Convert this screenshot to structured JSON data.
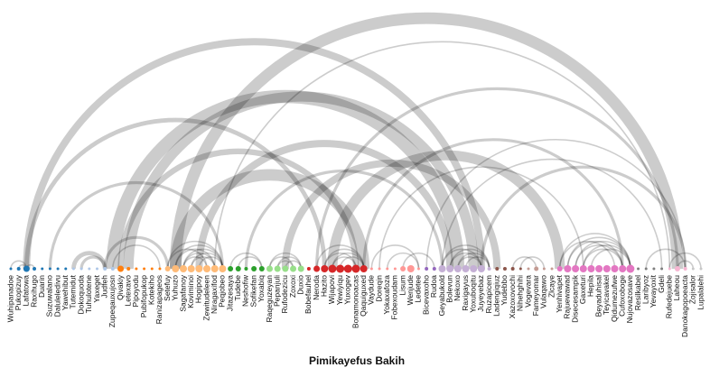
{
  "chart_data": {
    "type": "arc",
    "title": "Pimikayefus Bakih",
    "colors": [
      "#1f77b4",
      "#aec7e8",
      "#ff7f0e",
      "#ffbb78",
      "#2ca02c",
      "#98df8a",
      "#d62728",
      "#ff9896",
      "#9467bd",
      "#c5b0d5",
      "#8c564b",
      "#c49c94",
      "#e377c2",
      "#f7b6d2",
      "#7f7f7f",
      "#c7c7c7"
    ],
    "nodes": [
      {
        "name": "Wuhipanadoe",
        "group": 0,
        "size": 1.5
      },
      {
        "name": "Pukopizuy",
        "group": 0,
        "size": 2
      },
      {
        "name": "Lafatowa",
        "group": 0,
        "size": 3.5
      },
      {
        "name": "Raxihugo",
        "group": 0,
        "size": 2
      },
      {
        "name": "Duarin",
        "group": 0,
        "size": 1.5
      },
      {
        "name": "Suzuwalano",
        "group": 0,
        "size": 1.5
      },
      {
        "name": "Daluleledivu",
        "group": 0,
        "size": 1.5
      },
      {
        "name": "Yawehibut",
        "group": 0,
        "size": 1.5
      },
      {
        "name": "Tutemidut",
        "group": 1,
        "size": 1.5
      },
      {
        "name": "Dokoquoda",
        "group": 1,
        "size": 1.5
      },
      {
        "name": "Tuhulotene",
        "group": 1,
        "size": 1.5
      },
      {
        "name": "Yaxeget",
        "group": 1,
        "size": 1.5
      },
      {
        "name": "Judfeh",
        "group": 1,
        "size": 2
      },
      {
        "name": "Zupeqauxujosn",
        "group": 1,
        "size": 2
      },
      {
        "name": "Qivakiy",
        "group": 2,
        "size": 3.5
      },
      {
        "name": "Letexavo",
        "group": 2,
        "size": 2
      },
      {
        "name": "Pipoyodu",
        "group": 2,
        "size": 1.5
      },
      {
        "name": "Pubifopukop",
        "group": 2,
        "size": 1.5
      },
      {
        "name": "Kotekiho",
        "group": 2,
        "size": 1.5
      },
      {
        "name": "Ranizapageos",
        "group": 2,
        "size": 1.5
      },
      {
        "name": "Setefuy",
        "group": 3,
        "size": 3
      },
      {
        "name": "Yuhuzo",
        "group": 3,
        "size": 4
      },
      {
        "name": "Sagafanoy",
        "group": 3,
        "size": 4
      },
      {
        "name": "Koviminoi",
        "group": 3,
        "size": 4
      },
      {
        "name": "Hogipoy",
        "group": 3,
        "size": 4
      },
      {
        "name": "Zewitudeleen",
        "group": 3,
        "size": 4
      },
      {
        "name": "Niragaxifod",
        "group": 3,
        "size": 4
      },
      {
        "name": "Peqjobeo",
        "group": 3,
        "size": 4
      },
      {
        "name": "Jitazesaya",
        "group": 4,
        "size": 3
      },
      {
        "name": "Tudebe",
        "group": 4,
        "size": 3
      },
      {
        "name": "Neshofiw",
        "group": 4,
        "size": 2
      },
      {
        "name": "Sofikefan",
        "group": 4,
        "size": 3
      },
      {
        "name": "Yoxabiq",
        "group": 4,
        "size": 3
      },
      {
        "name": "Raqeguzeyan",
        "group": 5,
        "size": 3.5
      },
      {
        "name": "Pepanjuli",
        "group": 5,
        "size": 3.5
      },
      {
        "name": "Rufodezicu",
        "group": 5,
        "size": 3.5
      },
      {
        "name": "Zoxoxi",
        "group": 5,
        "size": 3.5
      },
      {
        "name": "Duxio",
        "group": 5,
        "size": 3.5
      },
      {
        "name": "Bobefauhel",
        "group": 6,
        "size": 2
      },
      {
        "name": "Neroda",
        "group": 6,
        "size": 3.5
      },
      {
        "name": "Hazito",
        "group": 6,
        "size": 4
      },
      {
        "name": "Wijapovi",
        "group": 6,
        "size": 4.5
      },
      {
        "name": "Yewiyiqu",
        "group": 6,
        "size": 4.5
      },
      {
        "name": "Yuxogev",
        "group": 6,
        "size": 4.5
      },
      {
        "name": "Bonamonoacas",
        "group": 6,
        "size": 4.5
      },
      {
        "name": "Qaquiguxed",
        "group": 6,
        "size": 4
      },
      {
        "name": "Vaydude",
        "group": 7,
        "size": 1.5
      },
      {
        "name": "Doreqin",
        "group": 7,
        "size": 1.5
      },
      {
        "name": "Yokaxafoza",
        "group": 7,
        "size": 1.5
      },
      {
        "name": "Fobexoudam",
        "group": 7,
        "size": 1.5
      },
      {
        "name": "Lisum",
        "group": 7,
        "size": 3
      },
      {
        "name": "Wenjude",
        "group": 7,
        "size": 4
      },
      {
        "name": "Ledetee",
        "group": 7,
        "size": 1.5
      },
      {
        "name": "Bicevaxoho",
        "group": 8,
        "size": 2
      },
      {
        "name": "Rudoa",
        "group": 8,
        "size": 2
      },
      {
        "name": "Geyabukold",
        "group": 9,
        "size": 4
      },
      {
        "name": "Bolevun",
        "group": 9,
        "size": 4
      },
      {
        "name": "Nekoxo",
        "group": 9,
        "size": 4
      },
      {
        "name": "Raxigayus",
        "group": 9,
        "size": 4
      },
      {
        "name": "Yoxuboqitu",
        "group": 9,
        "size": 4
      },
      {
        "name": "Juyeyebaz",
        "group": 9,
        "size": 4
      },
      {
        "name": "Ruzapicem",
        "group": 9,
        "size": 2
      },
      {
        "name": "Ladengiqiuz",
        "group": 10,
        "size": 2
      },
      {
        "name": "Yudebbo",
        "group": 10,
        "size": 2
      },
      {
        "name": "Xazoxovochi",
        "group": 10,
        "size": 2
      },
      {
        "name": "Nihehghihi",
        "group": 10,
        "size": 1.5
      },
      {
        "name": "Vogevara",
        "group": 11,
        "size": 1.5
      },
      {
        "name": "Fameyomar",
        "group": 11,
        "size": 2.5
      },
      {
        "name": "Vulaqawo",
        "group": 11,
        "size": 1.5
      },
      {
        "name": "Zlcaye",
        "group": 11,
        "size": 1.5
      },
      {
        "name": "Yenhivapet",
        "group": 12,
        "size": 3
      },
      {
        "name": "Rajuewawad",
        "group": 12,
        "size": 4
      },
      {
        "name": "Disecesampik",
        "group": 12,
        "size": 4
      },
      {
        "name": "Gaxeturi",
        "group": 12,
        "size": 4
      },
      {
        "name": "Hepila",
        "group": 12,
        "size": 4
      },
      {
        "name": "Beyaduhisal",
        "group": 12,
        "size": 4
      },
      {
        "name": "Teyicavakel",
        "group": 12,
        "size": 4
      },
      {
        "name": "Qidumezufwe",
        "group": 12,
        "size": 4
      },
      {
        "name": "Cufoxoboge",
        "group": 12,
        "size": 4
      },
      {
        "name": "Nujovazosave",
        "group": 12,
        "size": 4.5
      },
      {
        "name": "Resilkabel",
        "group": 14,
        "size": 1.5
      },
      {
        "name": "Laribyoz",
        "group": 14,
        "size": 1.5
      },
      {
        "name": "Yevayoxit",
        "group": 14,
        "size": 1.5
      },
      {
        "name": "Gdeli",
        "group": 14,
        "size": 1.5
      },
      {
        "name": "Rufedejuebe",
        "group": 13,
        "size": 1.5
      },
      {
        "name": "Laheou",
        "group": 13,
        "size": 3
      },
      {
        "name": "Danokagopoeacta",
        "group": 13,
        "size": 2
      },
      {
        "name": "Zojisalor",
        "group": 15,
        "size": 1.5
      },
      {
        "name": "Lupalalehi",
        "group": 15,
        "size": 1.5
      }
    ],
    "links": [
      {
        "source": 21,
        "target": 85,
        "value": 8
      },
      {
        "source": 2,
        "target": 60,
        "value": 5
      },
      {
        "source": 13,
        "target": 57,
        "value": 9
      },
      {
        "source": 14,
        "target": 44,
        "value": 4
      },
      {
        "source": 2,
        "target": 40,
        "value": 3
      },
      {
        "source": 5,
        "target": 27,
        "value": 2
      },
      {
        "source": 15,
        "target": 59,
        "value": 7
      },
      {
        "source": 21,
        "target": 45,
        "value": 8
      },
      {
        "source": 24,
        "target": 56,
        "value": 5
      },
      {
        "source": 35,
        "target": 62,
        "value": 5
      },
      {
        "source": 41,
        "target": 70,
        "value": 7
      },
      {
        "source": 39,
        "target": 85,
        "value": 2
      },
      {
        "source": 45,
        "target": 78,
        "value": 2
      },
      {
        "source": 53,
        "target": 86,
        "value": 1
      },
      {
        "source": 26,
        "target": 84,
        "value": 1
      },
      {
        "source": 47,
        "target": 73,
        "value": 1
      },
      {
        "source": 30,
        "target": 55,
        "value": 2
      },
      {
        "source": 12,
        "target": 20,
        "value": 2
      },
      {
        "source": 8,
        "target": 12,
        "value": 3
      },
      {
        "source": 9,
        "target": 12,
        "value": 2
      },
      {
        "source": 13,
        "target": 19,
        "value": 1
      },
      {
        "source": 60,
        "target": 86,
        "value": 2
      },
      {
        "source": 55,
        "target": 83,
        "value": 1
      },
      {
        "source": 20,
        "target": 27,
        "value": 1
      },
      {
        "source": 21,
        "target": 27,
        "value": 1
      },
      {
        "source": 22,
        "target": 27,
        "value": 1
      },
      {
        "source": 21,
        "target": 26,
        "value": 1
      },
      {
        "source": 22,
        "target": 26,
        "value": 1
      },
      {
        "source": 23,
        "target": 27,
        "value": 1
      },
      {
        "source": 20,
        "target": 25,
        "value": 1
      },
      {
        "source": 22,
        "target": 25,
        "value": 1
      },
      {
        "source": 23,
        "target": 26,
        "value": 1
      },
      {
        "source": 24,
        "target": 27,
        "value": 1
      },
      {
        "source": 33,
        "target": 37,
        "value": 1
      },
      {
        "source": 34,
        "target": 37,
        "value": 1
      },
      {
        "source": 33,
        "target": 36,
        "value": 1
      },
      {
        "source": 35,
        "target": 37,
        "value": 1
      },
      {
        "source": 34,
        "target": 36,
        "value": 1
      },
      {
        "source": 39,
        "target": 45,
        "value": 1
      },
      {
        "source": 40,
        "target": 45,
        "value": 1
      },
      {
        "source": 40,
        "target": 44,
        "value": 1
      },
      {
        "source": 41,
        "target": 45,
        "value": 1
      },
      {
        "source": 41,
        "target": 44,
        "value": 1
      },
      {
        "source": 42,
        "target": 45,
        "value": 1
      },
      {
        "source": 55,
        "target": 61,
        "value": 1
      },
      {
        "source": 56,
        "target": 61,
        "value": 1
      },
      {
        "source": 56,
        "target": 60,
        "value": 1
      },
      {
        "source": 57,
        "target": 61,
        "value": 1
      },
      {
        "source": 57,
        "target": 60,
        "value": 1
      },
      {
        "source": 58,
        "target": 61,
        "value": 1
      },
      {
        "source": 55,
        "target": 60,
        "value": 1
      },
      {
        "source": 70,
        "target": 79,
        "value": 1
      },
      {
        "source": 71,
        "target": 79,
        "value": 1
      },
      {
        "source": 71,
        "target": 78,
        "value": 1
      },
      {
        "source": 72,
        "target": 79,
        "value": 1
      },
      {
        "source": 72,
        "target": 78,
        "value": 1
      },
      {
        "source": 73,
        "target": 79,
        "value": 1
      },
      {
        "source": 73,
        "target": 78,
        "value": 1
      },
      {
        "source": 74,
        "target": 79,
        "value": 1
      },
      {
        "source": 70,
        "target": 77,
        "value": 1
      },
      {
        "source": 28,
        "target": 32,
        "value": 1
      },
      {
        "source": 29,
        "target": 32,
        "value": 1
      },
      {
        "source": 0,
        "target": 2,
        "value": 1
      },
      {
        "source": 1,
        "target": 2,
        "value": 1
      },
      {
        "source": 2,
        "target": 3,
        "value": 1
      },
      {
        "source": 64,
        "target": 67,
        "value": 1
      },
      {
        "source": 65,
        "target": 68,
        "value": 1
      },
      {
        "source": 81,
        "target": 86,
        "value": 1
      },
      {
        "source": 84,
        "target": 88,
        "value": 1
      },
      {
        "source": 85,
        "target": 87,
        "value": 1
      },
      {
        "source": 48,
        "target": 52,
        "value": 1
      },
      {
        "source": 50,
        "target": 54,
        "value": 1
      },
      {
        "source": 46,
        "target": 52,
        "value": 1
      }
    ]
  }
}
